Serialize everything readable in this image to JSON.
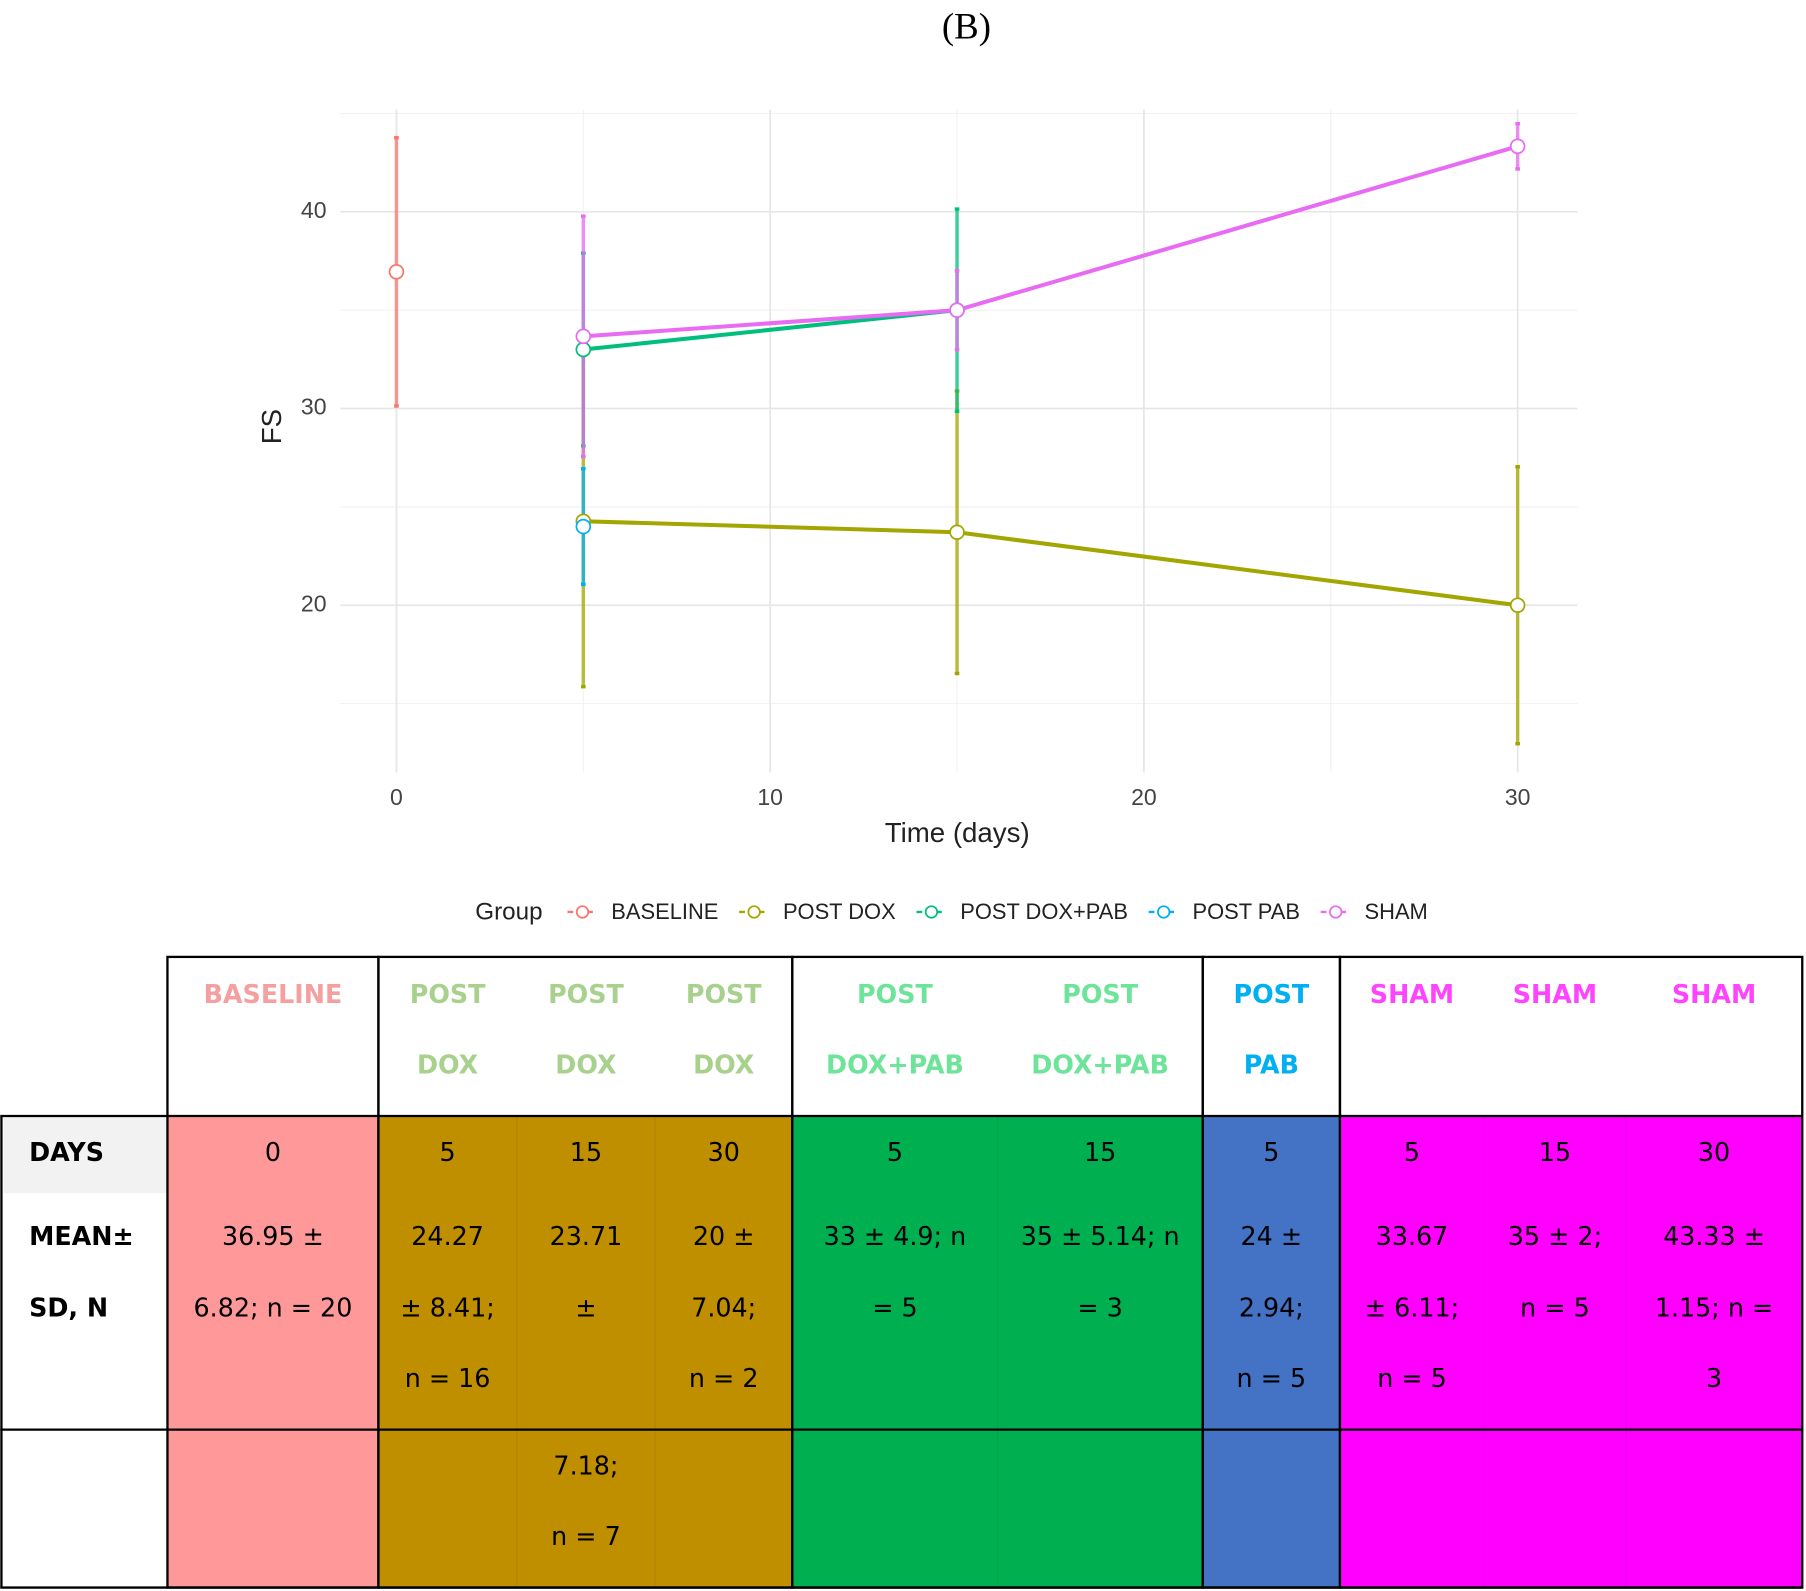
{
  "chart_data": {
    "type": "line",
    "title": "(B)",
    "xlabel": "Time (days)",
    "ylabel": "FS",
    "xlim": [
      -1.5,
      31.6
    ],
    "xticks": [
      0,
      10,
      20,
      30
    ],
    "ylim": [
      11.5,
      45.2
    ],
    "yticks": [
      20,
      30,
      40
    ],
    "grid": true,
    "legend": {
      "title": "Group",
      "position": "bottom"
    },
    "series": [
      {
        "name": "BASELINE",
        "color": "#f8766d",
        "x": [
          0
        ],
        "values": [
          36.95
        ],
        "errors": [
          6.82
        ]
      },
      {
        "name": "POST DOX",
        "color": "#a3a500",
        "x": [
          5,
          15,
          30
        ],
        "values": [
          24.27,
          23.71,
          20
        ],
        "errors": [
          8.41,
          7.18,
          7.04
        ]
      },
      {
        "name": "POST DOX+PAB",
        "color": "#00bf7d",
        "x": [
          5,
          15
        ],
        "values": [
          33,
          35
        ],
        "errors": [
          4.9,
          5.14
        ]
      },
      {
        "name": "POST PAB",
        "color": "#00b0f6",
        "x": [
          5
        ],
        "values": [
          24
        ],
        "errors": [
          2.94
        ]
      },
      {
        "name": "SHAM",
        "color": "#e76bf3",
        "x": [
          5,
          15,
          30
        ],
        "values": [
          33.67,
          35,
          43.33
        ],
        "errors": [
          6.11,
          2,
          1.15
        ]
      }
    ]
  },
  "table": {
    "row_labels": [
      "DAYS",
      "MEAN±",
      "SD, N"
    ],
    "groups": [
      {
        "fill": "#ff9999",
        "text_color": "#f4a0a0",
        "header": [
          "BASELINE"
        ],
        "columns": [
          {
            "days": "0",
            "mean": [
              "36.95 ±",
              "6.82; n = 20"
            ]
          }
        ]
      },
      {
        "fill": "#bf8f00",
        "text_color": "#a9d18e",
        "header": [
          "POST",
          "DOX"
        ],
        "columns": [
          {
            "days": "5",
            "mean": [
              "24.27",
              "± 8.41;",
              "n = 16"
            ]
          },
          {
            "days": "15",
            "mean": [
              "23.71",
              "±"
            ],
            "cont": [
              "7.18;",
              "n = 7"
            ]
          },
          {
            "days": "30",
            "mean": [
              "20 ±",
              "7.04;",
              "n = 2"
            ]
          }
        ]
      },
      {
        "fill": "#00b050",
        "text_color": "#6ee39a",
        "header": [
          "POST",
          "DOX+PAB"
        ],
        "columns": [
          {
            "days": "5",
            "mean": [
              "33 ± 4.9; n",
              "= 5"
            ]
          },
          {
            "days": "15",
            "mean": [
              "35 ± 5.14; n",
              "= 3"
            ]
          }
        ]
      },
      {
        "fill": "#4472c4",
        "text_color": "#00b0f0",
        "header": [
          "POST",
          "PAB"
        ],
        "columns": [
          {
            "days": "5",
            "mean": [
              "24 ±",
              "2.94;",
              "n = 5"
            ]
          }
        ]
      },
      {
        "fill": "#ff00ff",
        "text_color": "#ff44ff",
        "header": [
          "SHAM"
        ],
        "columns": [
          {
            "days": "5",
            "mean": [
              "33.67",
              "± 6.11;",
              "n = 5"
            ]
          },
          {
            "days": "15",
            "mean": [
              "35 ± 2;",
              "n = 5"
            ]
          },
          {
            "days": "30",
            "mean": [
              "43.33 ±",
              "1.15; n =",
              "3"
            ]
          }
        ]
      }
    ]
  }
}
